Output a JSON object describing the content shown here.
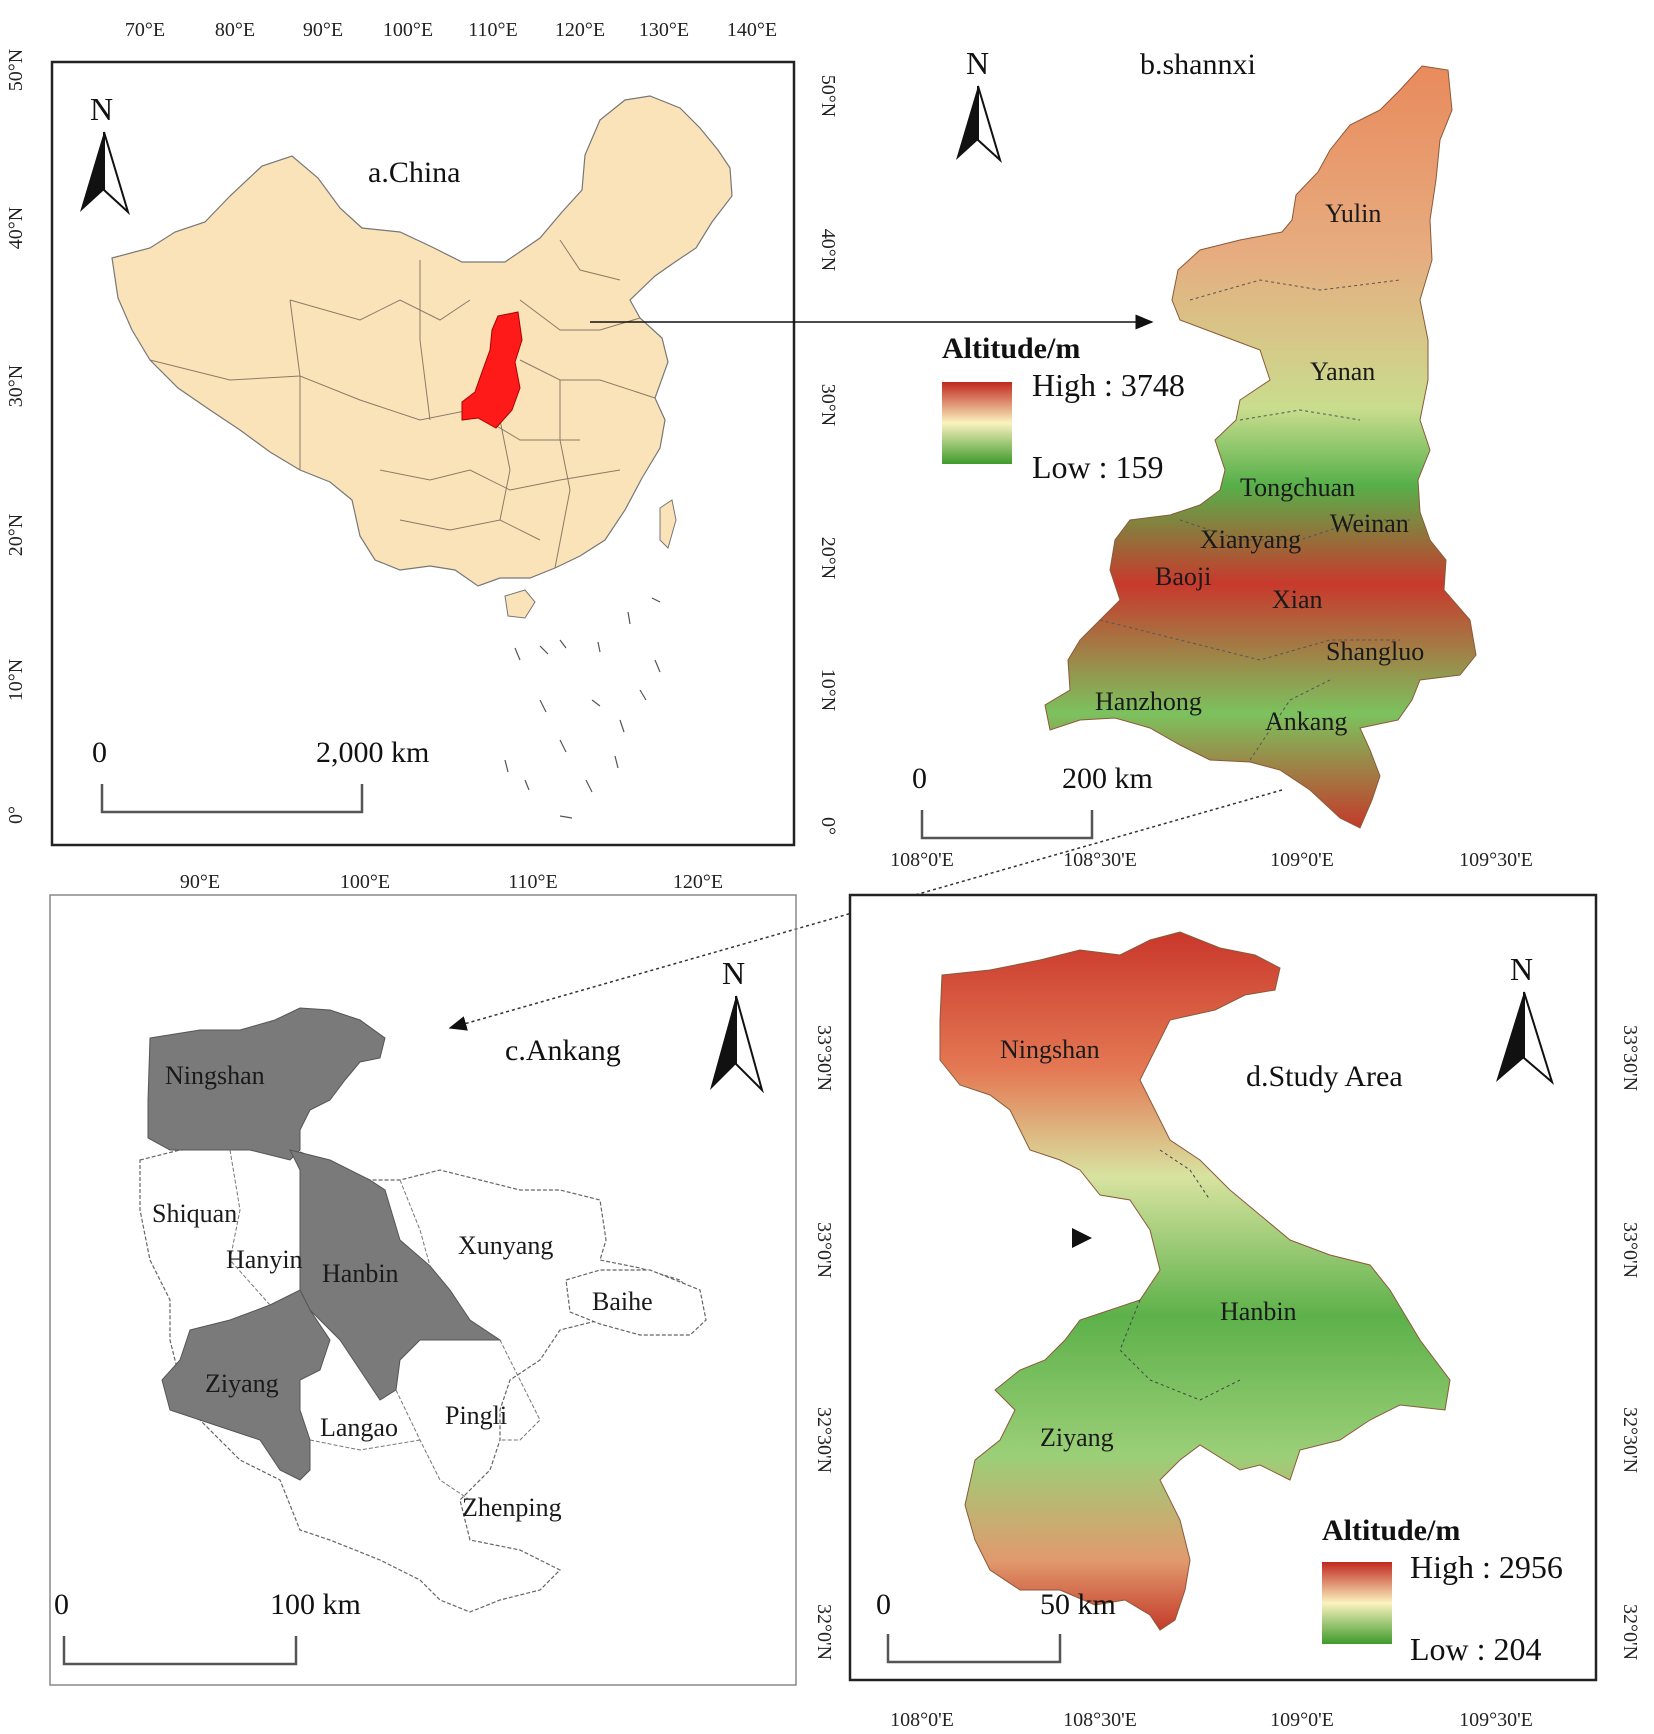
{
  "panels": {
    "china": {
      "title": "a.China",
      "top_ticks": [
        "70°E",
        "80°E",
        "90°E",
        "100°E",
        "110°E",
        "120°E",
        "130°E",
        "140°E"
      ],
      "bottom_ticks": [
        "90°E",
        "100°E",
        "110°E",
        "120°E"
      ],
      "left_ticks": [
        "50°N",
        "40°N",
        "30°N",
        "20°N",
        "10°N",
        "0°"
      ],
      "scale": {
        "zero": "0",
        "end": "2,000 km"
      },
      "north": "N",
      "colors": {
        "land": "#fbe3b9",
        "highlight": "#ff1a1a"
      }
    },
    "shannxi": {
      "title": "b.shannxi",
      "right_ticks": [
        "50°N",
        "40°N",
        "30°N",
        "20°N",
        "10°N",
        "0°"
      ],
      "places": [
        "Yulin",
        "Yanan",
        "Tongchuan",
        "Weinan",
        "Xianyang",
        "Baoji",
        "Xian",
        "Shangluo",
        "Hanzhong",
        "Ankang"
      ],
      "legend": {
        "title": "Altitude/m",
        "high": "High : 3748",
        "low": "Low : 159"
      },
      "scale": {
        "zero": "0",
        "end": "200 km"
      },
      "north": "N"
    },
    "ankang": {
      "title": "c.Ankang",
      "places": [
        "Ningshan",
        "Shiquan",
        "Hanyin",
        "Hanbin",
        "Xunyang",
        "Baihe",
        "Ziyang",
        "Langao",
        "Pingli",
        "Zhenping"
      ],
      "scale": {
        "zero": "0",
        "end": "100 km"
      },
      "north": "N",
      "colors": {
        "highlight": "#7a7a7a"
      }
    },
    "study": {
      "title": "d.Study Area",
      "top_ticks": [
        "108°0'E",
        "108°30'E",
        "109°0'E",
        "109°30'E"
      ],
      "bottom_ticks": [
        "108°0'E",
        "108°30'E",
        "109°0'E",
        "109°30'E"
      ],
      "side_ticks": [
        "33°30'N",
        "33°0'N",
        "32°30'N",
        "32°0'N"
      ],
      "places": [
        "Ningshan",
        "Hanbin",
        "Ziyang"
      ],
      "legend": {
        "title": "Altitude/m",
        "high": "High : 2956",
        "low": "Low : 204"
      },
      "scale": {
        "zero": "0",
        "end": "50 km"
      },
      "north": "N"
    }
  },
  "colors": {
    "dem_high": "#c0271e",
    "dem_mid": "#fbf3c0",
    "dem_low": "#3f9a2b"
  }
}
